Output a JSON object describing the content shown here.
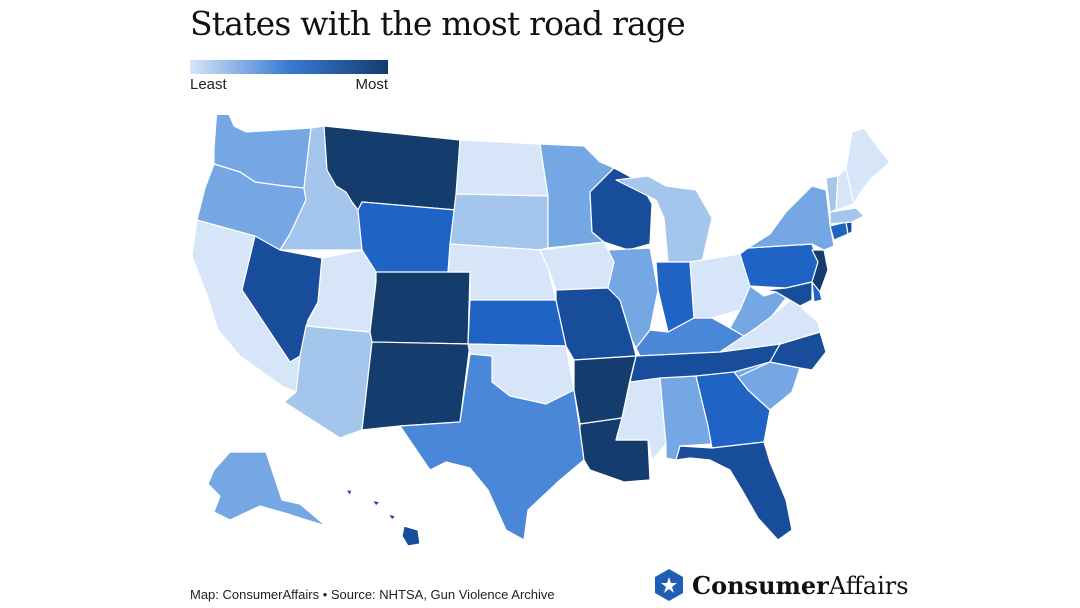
{
  "header": {
    "title": "States with the most road rage"
  },
  "legend": {
    "least_label": "Least",
    "most_label": "Most",
    "colors": [
      "#d6e6f8",
      "#a5c6ec",
      "#74a7e3",
      "#4a87d8",
      "#1f63c4",
      "#174d9a",
      "#143c6d"
    ]
  },
  "footer": {
    "source": "Map: ConsumerAffairs • Source: NHTSA, Gun Violence Archive"
  },
  "logo": {
    "part1": "Consumer",
    "part2": "Affairs",
    "badge_color": "#1e5fb3"
  }
}
